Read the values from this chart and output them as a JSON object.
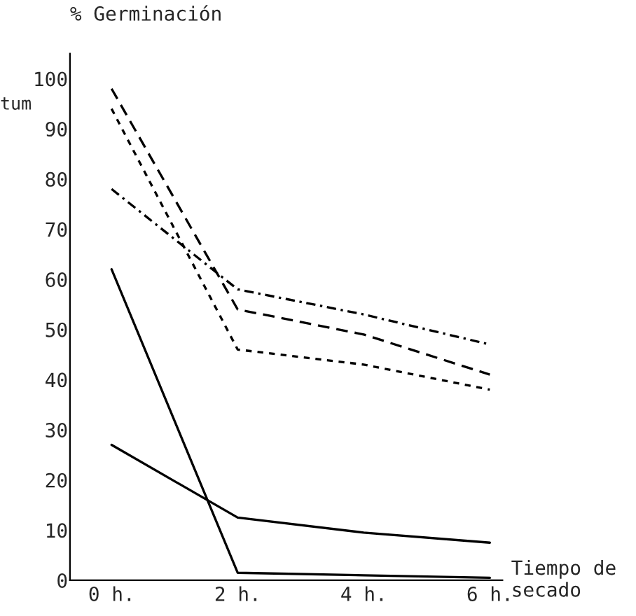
{
  "chart_data": {
    "type": "line",
    "ylabel": "% Germinación",
    "xlabel": "Tiempo de secado",
    "categories": [
      "0 h.",
      "2 h.",
      "4 h.",
      "6 h."
    ],
    "series": [
      {
        "color": "#000000",
        "line_style": "dashed",
        "values": [
          98,
          54,
          49,
          41
        ]
      },
      {
        "color": "#000000",
        "line_style": "dotted",
        "values": [
          94,
          46,
          43,
          38
        ]
      },
      {
        "color": "#000000",
        "line_style": "dashdot",
        "values": [
          78,
          58,
          53,
          47
        ]
      },
      {
        "color": "#000000",
        "line_style": "solid",
        "values": [
          62,
          1.5,
          1,
          0.5
        ]
      },
      {
        "color": "#000000",
        "line_style": "solid",
        "values": [
          27,
          12.5,
          9.5,
          7.5
        ]
      }
    ],
    "ylim": [
      0,
      105
    ],
    "yticks": [
      0,
      10,
      20,
      30,
      40,
      50,
      60,
      70,
      80,
      90,
      100
    ],
    "grid": false,
    "legend": false,
    "marker": "none",
    "annotations": [
      "tum"
    ]
  }
}
